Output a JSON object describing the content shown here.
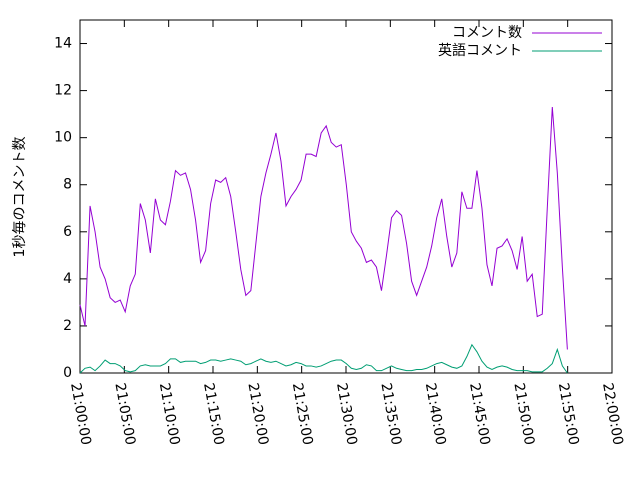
{
  "chart_data": {
    "type": "line",
    "y_label": "1秒毎のコメント数",
    "x": [
      "21:00:00",
      "21:00:34",
      "21:01:08",
      "21:01:42",
      "21:02:16",
      "21:02:50",
      "21:03:24",
      "21:03:58",
      "21:04:32",
      "21:05:06",
      "21:05:40",
      "21:06:14",
      "21:06:48",
      "21:07:22",
      "21:07:56",
      "21:08:30",
      "21:09:04",
      "21:09:38",
      "21:10:12",
      "21:10:46",
      "21:11:20",
      "21:11:54",
      "21:12:28",
      "21:13:02",
      "21:13:36",
      "21:14:10",
      "21:14:44",
      "21:15:18",
      "21:15:52",
      "21:16:26",
      "21:17:00",
      "21:17:34",
      "21:18:08",
      "21:18:42",
      "21:19:16",
      "21:19:50",
      "21:20:24",
      "21:20:58",
      "21:21:32",
      "21:22:06",
      "21:22:40",
      "21:23:14",
      "21:23:48",
      "21:24:22",
      "21:24:56",
      "21:25:30",
      "21:26:04",
      "21:26:38",
      "21:27:12",
      "21:27:46",
      "21:28:20",
      "21:28:54",
      "21:29:28",
      "21:30:02",
      "21:30:36",
      "21:31:10",
      "21:31:44",
      "21:32:18",
      "21:32:52",
      "21:33:26",
      "21:34:00",
      "21:34:34",
      "21:35:08",
      "21:35:42",
      "21:36:16",
      "21:36:50",
      "21:37:24",
      "21:37:58",
      "21:38:32",
      "21:39:06",
      "21:39:40",
      "21:40:14",
      "21:40:48",
      "21:41:22",
      "21:41:56",
      "21:42:30",
      "21:43:04",
      "21:43:38",
      "21:44:12",
      "21:44:46",
      "21:45:20",
      "21:45:54",
      "21:46:28",
      "21:47:02",
      "21:47:36",
      "21:48:10",
      "21:48:44",
      "21:49:18",
      "21:49:52",
      "21:50:26",
      "21:51:00",
      "21:51:34",
      "21:52:08",
      "21:52:42",
      "21:53:16",
      "21:53:50",
      "21:54:24",
      "21:54:58"
    ],
    "series": [
      {
        "name": "コメント数",
        "color": "#9400d3",
        "values": [
          2.9,
          2.0,
          7.1,
          6.0,
          4.5,
          4.0,
          3.2,
          3.0,
          3.1,
          2.6,
          3.7,
          4.2,
          7.2,
          6.5,
          5.1,
          7.4,
          6.5,
          6.3,
          7.3,
          8.6,
          8.4,
          8.5,
          7.8,
          6.5,
          4.7,
          5.2,
          7.2,
          8.2,
          8.1,
          8.3,
          7.5,
          6.0,
          4.4,
          3.3,
          3.5,
          5.5,
          7.5,
          8.5,
          9.3,
          10.2,
          9.0,
          7.1,
          7.5,
          7.8,
          8.2,
          9.3,
          9.3,
          9.2,
          10.2,
          10.5,
          9.8,
          9.6,
          9.7,
          8.0,
          6.0,
          5.6,
          5.3,
          4.7,
          4.8,
          4.5,
          3.5,
          5.0,
          6.6,
          6.9,
          6.7,
          5.5,
          3.9,
          3.3,
          3.9,
          4.5,
          5.4,
          6.6,
          7.4,
          5.8,
          4.5,
          5.1,
          7.7,
          7.0,
          7.0,
          8.6,
          7.0,
          4.6,
          3.7,
          5.3,
          5.4,
          5.7,
          5.2,
          4.4,
          5.8,
          3.9,
          4.2,
          2.4,
          2.5,
          7.0,
          11.3,
          8.5,
          4.5,
          1.0
        ]
      },
      {
        "name": "英語コメント",
        "color": "#009e73",
        "values": [
          0.0,
          0.2,
          0.25,
          0.1,
          0.3,
          0.55,
          0.4,
          0.4,
          0.3,
          0.1,
          0.05,
          0.1,
          0.3,
          0.35,
          0.3,
          0.3,
          0.3,
          0.4,
          0.6,
          0.6,
          0.45,
          0.5,
          0.5,
          0.5,
          0.4,
          0.45,
          0.55,
          0.55,
          0.5,
          0.55,
          0.6,
          0.55,
          0.5,
          0.35,
          0.4,
          0.5,
          0.6,
          0.5,
          0.45,
          0.5,
          0.4,
          0.3,
          0.35,
          0.45,
          0.4,
          0.3,
          0.3,
          0.25,
          0.3,
          0.4,
          0.5,
          0.55,
          0.55,
          0.4,
          0.2,
          0.15,
          0.2,
          0.35,
          0.3,
          0.1,
          0.1,
          0.2,
          0.3,
          0.2,
          0.15,
          0.1,
          0.1,
          0.15,
          0.15,
          0.2,
          0.3,
          0.4,
          0.45,
          0.35,
          0.25,
          0.2,
          0.3,
          0.7,
          1.2,
          0.9,
          0.5,
          0.25,
          0.15,
          0.25,
          0.3,
          0.25,
          0.15,
          0.1,
          0.1,
          0.1,
          0.05,
          0.05,
          0.05,
          0.2,
          0.4,
          1.0,
          0.3,
          0.0
        ]
      }
    ],
    "xlim": [
      "21:00:00",
      "22:00:00"
    ],
    "xticks": [
      "21:00:00",
      "21:05:00",
      "21:10:00",
      "21:15:00",
      "21:20:00",
      "21:25:00",
      "21:30:00",
      "21:35:00",
      "21:40:00",
      "21:45:00",
      "21:50:00",
      "21:55:00",
      "22:00:00"
    ],
    "ylim": [
      0,
      15
    ],
    "yticks": [
      0,
      2,
      4,
      6,
      8,
      10,
      12,
      14
    ],
    "legend": "top-right"
  }
}
